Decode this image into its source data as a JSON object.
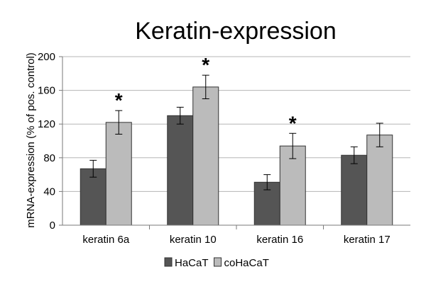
{
  "chart_data": {
    "type": "bar",
    "title": "Keratin-expression",
    "xlabel": "",
    "ylabel": "mRNA-expression (% of pos. control)",
    "categories": [
      "keratin 6a",
      "keratin 10",
      "keratin 16",
      "keratin 17"
    ],
    "ylim": [
      0,
      200
    ],
    "yticks": [
      "0",
      "40",
      "80",
      "120",
      "160",
      "200"
    ],
    "grid": true,
    "legend_position": "bottom",
    "series": [
      {
        "name": "HaCaT",
        "values": [
          67,
          130,
          51,
          83
        ],
        "errors": [
          10,
          10,
          9,
          10
        ],
        "color": "#555555"
      },
      {
        "name": "coHaCaT",
        "values": [
          122,
          164,
          94,
          107
        ],
        "errors": [
          14,
          14,
          15,
          14
        ],
        "color": "#bbbbbb"
      }
    ],
    "annotations": [
      {
        "category_index": 0,
        "series_index": 1,
        "text": "*"
      },
      {
        "category_index": 1,
        "series_index": 1,
        "text": "*"
      },
      {
        "category_index": 2,
        "series_index": 1,
        "text": "*"
      }
    ]
  }
}
